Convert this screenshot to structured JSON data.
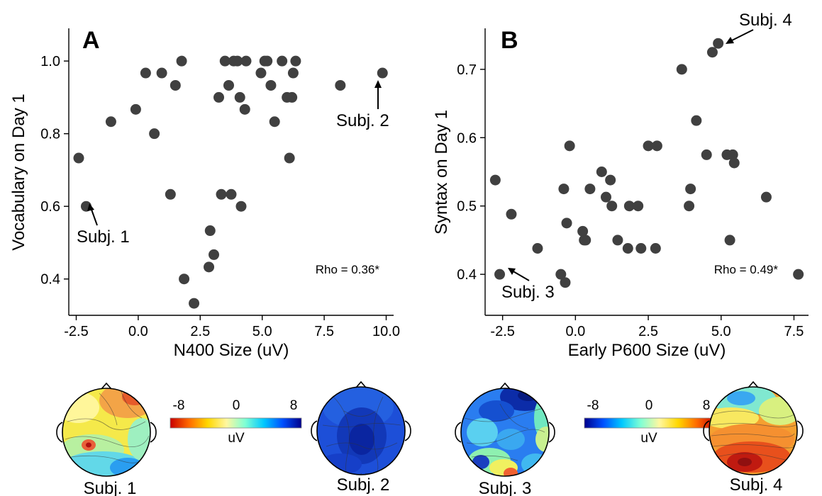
{
  "chart_data": [
    {
      "type": "scatter",
      "panel": "A",
      "xlabel": "N400 Size (uV)",
      "ylabel": "Vocabulary on Day 1",
      "xlim": [
        -2.8,
        10.3
      ],
      "ylim": [
        0.3,
        1.09
      ],
      "xticks": [
        -2.5,
        0.0,
        2.5,
        5.0,
        7.5,
        10.0
      ],
      "xtick_labels": [
        "-2.5",
        "0.0",
        "2.5",
        "5.0",
        "7.5",
        "10.0"
      ],
      "yticks": [
        0.4,
        0.6,
        0.8,
        1.0
      ],
      "ytick_labels": [
        "0.4",
        "0.6",
        "0.8",
        "1.0"
      ],
      "annotation": "Rho = 0.36*",
      "points": [
        {
          "x": -2.4,
          "y": 0.733
        },
        {
          "x": -2.1,
          "y": 0.6
        },
        {
          "x": -1.1,
          "y": 0.833
        },
        {
          "x": -0.1,
          "y": 0.867
        },
        {
          "x": 0.3,
          "y": 0.967
        },
        {
          "x": 0.65,
          "y": 0.8
        },
        {
          "x": 0.95,
          "y": 0.967
        },
        {
          "x": 1.3,
          "y": 0.633
        },
        {
          "x": 1.5,
          "y": 0.933
        },
        {
          "x": 1.75,
          "y": 1.0
        },
        {
          "x": 1.85,
          "y": 0.4
        },
        {
          "x": 2.25,
          "y": 0.333
        },
        {
          "x": 2.85,
          "y": 0.433
        },
        {
          "x": 2.9,
          "y": 0.533
        },
        {
          "x": 3.05,
          "y": 0.467
        },
        {
          "x": 3.25,
          "y": 0.9
        },
        {
          "x": 3.35,
          "y": 0.633
        },
        {
          "x": 3.5,
          "y": 1.0
        },
        {
          "x": 3.65,
          "y": 0.933
        },
        {
          "x": 3.75,
          "y": 0.633
        },
        {
          "x": 3.85,
          "y": 1.0
        },
        {
          "x": 4.0,
          "y": 1.0
        },
        {
          "x": 4.1,
          "y": 0.9
        },
        {
          "x": 4.15,
          "y": 0.6
        },
        {
          "x": 4.3,
          "y": 0.867
        },
        {
          "x": 4.35,
          "y": 1.0
        },
        {
          "x": 4.95,
          "y": 0.967
        },
        {
          "x": 5.1,
          "y": 1.0
        },
        {
          "x": 5.2,
          "y": 1.0
        },
        {
          "x": 5.35,
          "y": 0.933
        },
        {
          "x": 5.5,
          "y": 0.833
        },
        {
          "x": 5.8,
          "y": 1.0
        },
        {
          "x": 6.0,
          "y": 0.9
        },
        {
          "x": 6.1,
          "y": 0.733
        },
        {
          "x": 6.2,
          "y": 0.9
        },
        {
          "x": 6.25,
          "y": 0.967
        },
        {
          "x": 6.35,
          "y": 1.0
        },
        {
          "x": 8.15,
          "y": 0.933
        },
        {
          "x": 9.85,
          "y": 0.967
        }
      ],
      "callouts": [
        {
          "label": "Subj. 1",
          "x": -2.1,
          "y": 0.6
        },
        {
          "label": "Subj. 2",
          "x": 9.85,
          "y": 0.967
        }
      ]
    },
    {
      "type": "scatter",
      "panel": "B",
      "xlabel": "Early P600 Size (uV)",
      "ylabel": "Syntax on Day 1",
      "xlim": [
        -3.1,
        8.0
      ],
      "ylim": [
        0.34,
        0.76
      ],
      "xticks": [
        -2.5,
        0.0,
        2.5,
        5.0,
        7.5
      ],
      "xtick_labels": [
        "-2.5",
        "0.0",
        "2.5",
        "5.0",
        "7.5"
      ],
      "yticks": [
        0.4,
        0.5,
        0.6,
        0.7
      ],
      "ytick_labels": [
        "0.4",
        "0.5",
        "0.6",
        "0.7"
      ],
      "annotation": "Rho = 0.49*",
      "points": [
        {
          "x": -2.75,
          "y": 0.538
        },
        {
          "x": -2.6,
          "y": 0.4
        },
        {
          "x": -2.2,
          "y": 0.488
        },
        {
          "x": -1.3,
          "y": 0.438
        },
        {
          "x": -0.5,
          "y": 0.4
        },
        {
          "x": -0.4,
          "y": 0.525
        },
        {
          "x": -0.35,
          "y": 0.388
        },
        {
          "x": -0.3,
          "y": 0.475
        },
        {
          "x": -0.2,
          "y": 0.588
        },
        {
          "x": 0.25,
          "y": 0.463
        },
        {
          "x": 0.3,
          "y": 0.45
        },
        {
          "x": 0.35,
          "y": 0.45
        },
        {
          "x": 0.5,
          "y": 0.525
        },
        {
          "x": 0.9,
          "y": 0.55
        },
        {
          "x": 1.05,
          "y": 0.513
        },
        {
          "x": 1.2,
          "y": 0.538
        },
        {
          "x": 1.25,
          "y": 0.5
        },
        {
          "x": 1.45,
          "y": 0.45
        },
        {
          "x": 1.8,
          "y": 0.438
        },
        {
          "x": 1.85,
          "y": 0.5
        },
        {
          "x": 2.15,
          "y": 0.5
        },
        {
          "x": 2.25,
          "y": 0.438
        },
        {
          "x": 2.5,
          "y": 0.588
        },
        {
          "x": 2.75,
          "y": 0.438
        },
        {
          "x": 2.8,
          "y": 0.588
        },
        {
          "x": 3.65,
          "y": 0.7
        },
        {
          "x": 3.9,
          "y": 0.5
        },
        {
          "x": 3.95,
          "y": 0.525
        },
        {
          "x": 4.15,
          "y": 0.625
        },
        {
          "x": 4.5,
          "y": 0.575
        },
        {
          "x": 4.7,
          "y": 0.725
        },
        {
          "x": 4.9,
          "y": 0.738
        },
        {
          "x": 5.2,
          "y": 0.575
        },
        {
          "x": 5.3,
          "y": 0.45
        },
        {
          "x": 5.4,
          "y": 0.575
        },
        {
          "x": 5.45,
          "y": 0.563
        },
        {
          "x": 6.55,
          "y": 0.513
        },
        {
          "x": 7.65,
          "y": 0.4
        }
      ],
      "callouts": [
        {
          "label": "Subj. 3",
          "x": -2.6,
          "y": 0.4
        },
        {
          "label": "Subj. 4",
          "x": 4.9,
          "y": 0.738
        }
      ]
    }
  ],
  "colorbars": [
    {
      "ticks": [
        "-8",
        "0",
        "8"
      ],
      "unit": "uV",
      "colors": [
        "#c80000",
        "#ff6a00",
        "#ffd700",
        "#fff7a0",
        "#7fffd4",
        "#00c8ff",
        "#0050ff",
        "#00008b"
      ]
    },
    {
      "ticks": [
        "-8",
        "0",
        "8"
      ],
      "unit": "uV",
      "colors": [
        "#00008b",
        "#0050ff",
        "#00c8ff",
        "#7fffd4",
        "#fff7a0",
        "#ffd700",
        "#ff6a00",
        "#c80000"
      ]
    }
  ],
  "topomaps": [
    {
      "caption": "Subj. 1",
      "scheme": "yellow-warm"
    },
    {
      "caption": "Subj. 2",
      "scheme": "deep-blue"
    },
    {
      "caption": "Subj. 3",
      "scheme": "blue-mixed"
    },
    {
      "caption": "Subj. 4",
      "scheme": "orange-red"
    }
  ]
}
